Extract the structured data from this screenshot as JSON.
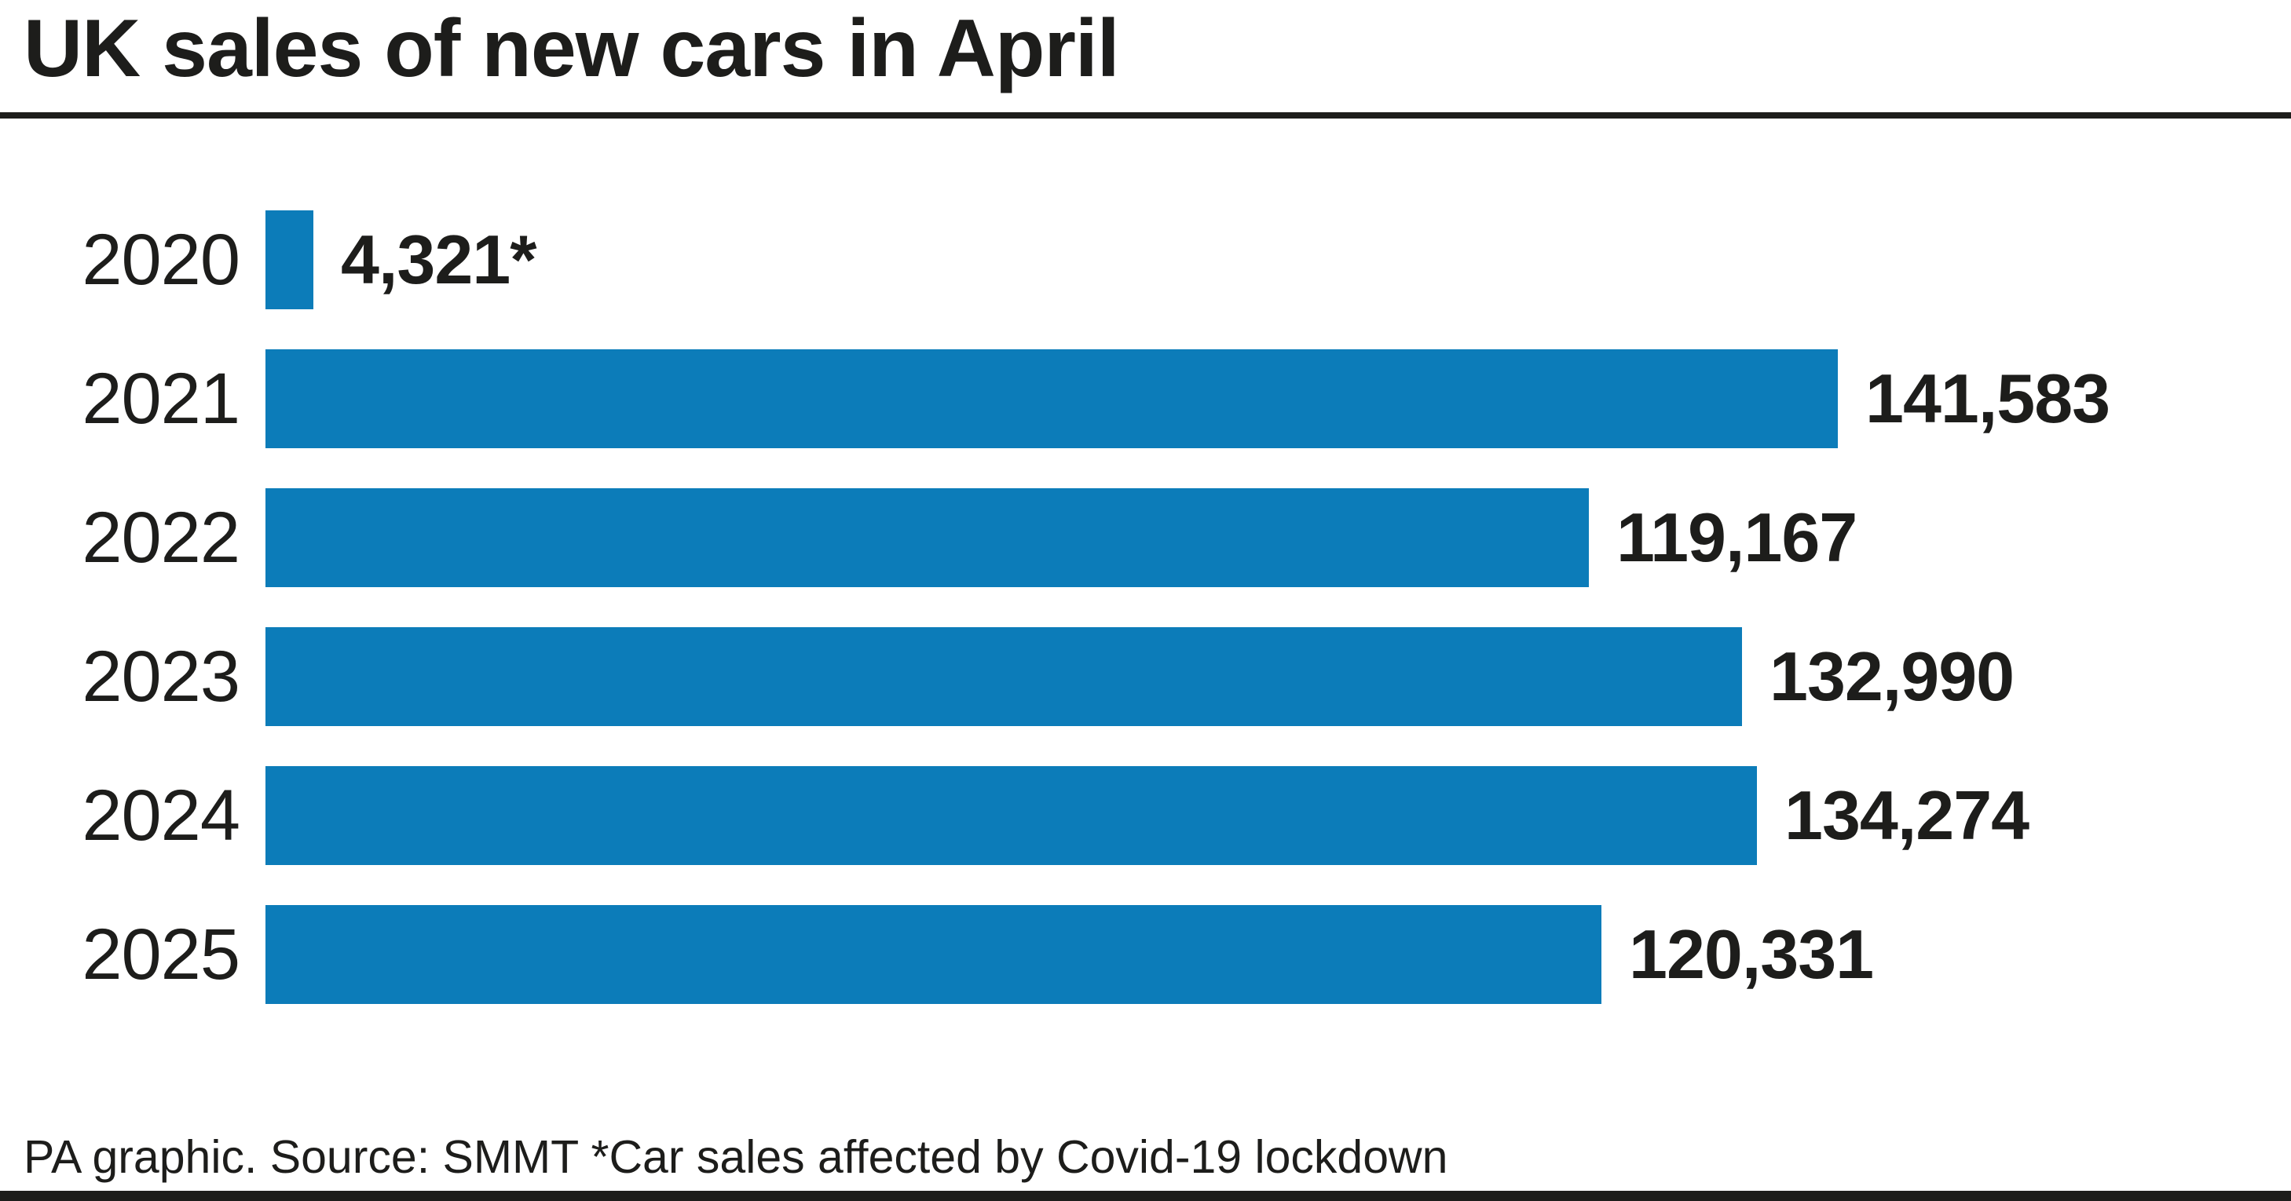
{
  "title": "UK sales of new cars in April",
  "footer": "PA graphic. Source: SMMT *Car sales affected by Covid-19 lockdown",
  "colors": {
    "bar": "#0c7cb9",
    "ink": "#1d1d1b",
    "background": "#ffffff"
  },
  "chart_data": {
    "type": "bar",
    "orientation": "horizontal",
    "title": "UK sales of new cars in April",
    "categories": [
      "2020",
      "2021",
      "2022",
      "2023",
      "2024",
      "2025"
    ],
    "values": [
      4321,
      141583,
      119167,
      132990,
      134274,
      120331
    ],
    "value_labels": [
      "4,321*",
      "141,583",
      "119,167",
      "132,990",
      "134,274",
      "120,331"
    ],
    "xlabel": "",
    "ylabel": "",
    "xlim": [
      0,
      141583
    ],
    "grid": false,
    "legend": null,
    "bar_color": "#0c7cb9",
    "value_label_position": "outside-end",
    "annotation": "*Car sales affected by Covid-19 lockdown",
    "source": "PA graphic. Source: SMMT"
  }
}
